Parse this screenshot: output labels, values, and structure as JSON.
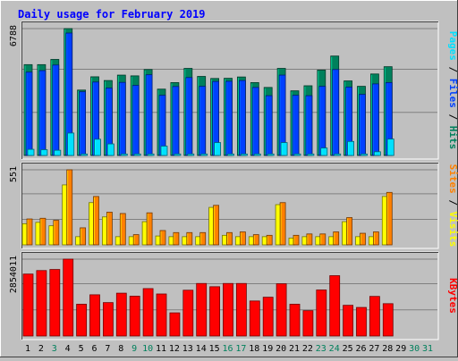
{
  "title": "Daily usage for February 2019",
  "colors": {
    "background": "#c0c0c0",
    "title": "#0000ff",
    "grid": "#808080",
    "hits": "#00805c",
    "files": "#0040ff",
    "pages": "#00e0ff",
    "visits": "#ffff00",
    "sites": "#ff8000",
    "kbytes": "#ff0000",
    "weekday_label": "#000000",
    "weekend_label": "#00805c"
  },
  "chart_data": [
    {
      "type": "bar",
      "panel": "top",
      "max_label": "6788",
      "ymax": 6788,
      "axis_label_parts": [
        {
          "text": "Pages",
          "color": "#00e0ff"
        },
        {
          "text": " / ",
          "color": "#000000"
        },
        {
          "text": "Files",
          "color": "#0040ff"
        },
        {
          "text": " / ",
          "color": "#000000"
        },
        {
          "text": "Hits",
          "color": "#00805c"
        }
      ],
      "categories": [
        "1",
        "2",
        "3",
        "4",
        "5",
        "6",
        "7",
        "8",
        "9",
        "10",
        "11",
        "12",
        "13",
        "14",
        "15",
        "16",
        "17",
        "18",
        "19",
        "20",
        "21",
        "22",
        "23",
        "24",
        "25",
        "26",
        "27",
        "28",
        "29",
        "30",
        "31"
      ],
      "series": [
        {
          "name": "Hits",
          "values": [
            4860,
            4860,
            5140,
            6788,
            3500,
            4210,
            4010,
            4300,
            4260,
            4600,
            3550,
            3900,
            4660,
            4230,
            4120,
            4130,
            4200,
            3900,
            3640,
            4660,
            3460,
            3730,
            4570,
            5320,
            3990,
            3700,
            4360,
            4750,
            0,
            0,
            0
          ]
        },
        {
          "name": "Files",
          "values": [
            4460,
            4540,
            4840,
            6550,
            3410,
            3930,
            3610,
            3910,
            3750,
            4320,
            3220,
            3690,
            4170,
            3700,
            3960,
            3970,
            4010,
            3640,
            3200,
            4300,
            3220,
            3200,
            3700,
            4600,
            3660,
            3270,
            3830,
            3900,
            0,
            0,
            0
          ]
        },
        {
          "name": "Pages",
          "values": [
            330,
            310,
            280,
            1200,
            80,
            870,
            620,
            80,
            80,
            80,
            500,
            80,
            80,
            80,
            690,
            80,
            80,
            80,
            80,
            690,
            80,
            80,
            400,
            80,
            750,
            80,
            200,
            880,
            0,
            0,
            0
          ]
        }
      ]
    },
    {
      "type": "bar",
      "panel": "middle",
      "max_label": "551",
      "ymax": 551,
      "axis_label_parts": [
        {
          "text": "Sites",
          "color": "#ff8000"
        },
        {
          "text": " / ",
          "color": "#000000"
        },
        {
          "text": "Visits",
          "color": "#ffff00"
        }
      ],
      "categories": [
        "1",
        "2",
        "3",
        "4",
        "5",
        "6",
        "7",
        "8",
        "9",
        "10",
        "11",
        "12",
        "13",
        "14",
        "15",
        "16",
        "17",
        "18",
        "19",
        "20",
        "21",
        "22",
        "23",
        "24",
        "25",
        "26",
        "27",
        "28",
        "29",
        "30",
        "31"
      ],
      "series": [
        {
          "name": "Visits",
          "values": [
            155,
            165,
            140,
            440,
            60,
            310,
            205,
            60,
            60,
            170,
            65,
            60,
            60,
            60,
            275,
            70,
            60,
            60,
            60,
            295,
            50,
            60,
            60,
            60,
            170,
            60,
            60,
            355,
            0,
            0,
            0
          ]
        },
        {
          "name": "Sites",
          "values": [
            190,
            195,
            180,
            551,
            125,
            355,
            240,
            230,
            75,
            235,
            105,
            90,
            90,
            90,
            290,
            90,
            95,
            75,
            70,
            310,
            70,
            80,
            80,
            95,
            200,
            85,
            95,
            385,
            0,
            0,
            0
          ]
        }
      ]
    },
    {
      "type": "bar",
      "panel": "bottom",
      "max_label": "2854011",
      "ymax": 2854011,
      "axis_label_parts": [
        {
          "text": "KBytes",
          "color": "#ff0000"
        }
      ],
      "categories": [
        "1",
        "2",
        "3",
        "4",
        "5",
        "6",
        "7",
        "8",
        "9",
        "10",
        "11",
        "12",
        "13",
        "14",
        "15",
        "16",
        "17",
        "18",
        "19",
        "20",
        "21",
        "22",
        "23",
        "24",
        "25",
        "26",
        "27",
        "28",
        "29",
        "30",
        "31"
      ],
      "series": [
        {
          "name": "KBytes",
          "values": [
            2300000,
            2430000,
            2470000,
            2854011,
            1180000,
            1530000,
            1240000,
            1590000,
            1480000,
            1760000,
            1560000,
            860000,
            1700000,
            1950000,
            1830000,
            1950000,
            1950000,
            1300000,
            1440000,
            1940000,
            1180000,
            940000,
            1710000,
            2240000,
            1140000,
            1060000,
            1470000,
            1200000,
            0,
            0,
            0
          ]
        }
      ]
    }
  ],
  "days": [
    {
      "label": "1",
      "weekend": false
    },
    {
      "label": "2",
      "weekend": false
    },
    {
      "label": "3",
      "weekend": true
    },
    {
      "label": "4",
      "weekend": false
    },
    {
      "label": "5",
      "weekend": false
    },
    {
      "label": "6",
      "weekend": false
    },
    {
      "label": "7",
      "weekend": false
    },
    {
      "label": "8",
      "weekend": false
    },
    {
      "label": "9",
      "weekend": true
    },
    {
      "label": "10",
      "weekend": true
    },
    {
      "label": "11",
      "weekend": false
    },
    {
      "label": "12",
      "weekend": false
    },
    {
      "label": "13",
      "weekend": false
    },
    {
      "label": "14",
      "weekend": false
    },
    {
      "label": "15",
      "weekend": false
    },
    {
      "label": "16",
      "weekend": true
    },
    {
      "label": "17",
      "weekend": true
    },
    {
      "label": "18",
      "weekend": false
    },
    {
      "label": "19",
      "weekend": false
    },
    {
      "label": "20",
      "weekend": false
    },
    {
      "label": "21",
      "weekend": false
    },
    {
      "label": "22",
      "weekend": false
    },
    {
      "label": "23",
      "weekend": true
    },
    {
      "label": "24",
      "weekend": true
    },
    {
      "label": "25",
      "weekend": false
    },
    {
      "label": "26",
      "weekend": false
    },
    {
      "label": "27",
      "weekend": false
    },
    {
      "label": "28",
      "weekend": false
    },
    {
      "label": "29",
      "weekend": false
    },
    {
      "label": "30",
      "weekend": true
    },
    {
      "label": "31",
      "weekend": true
    }
  ]
}
